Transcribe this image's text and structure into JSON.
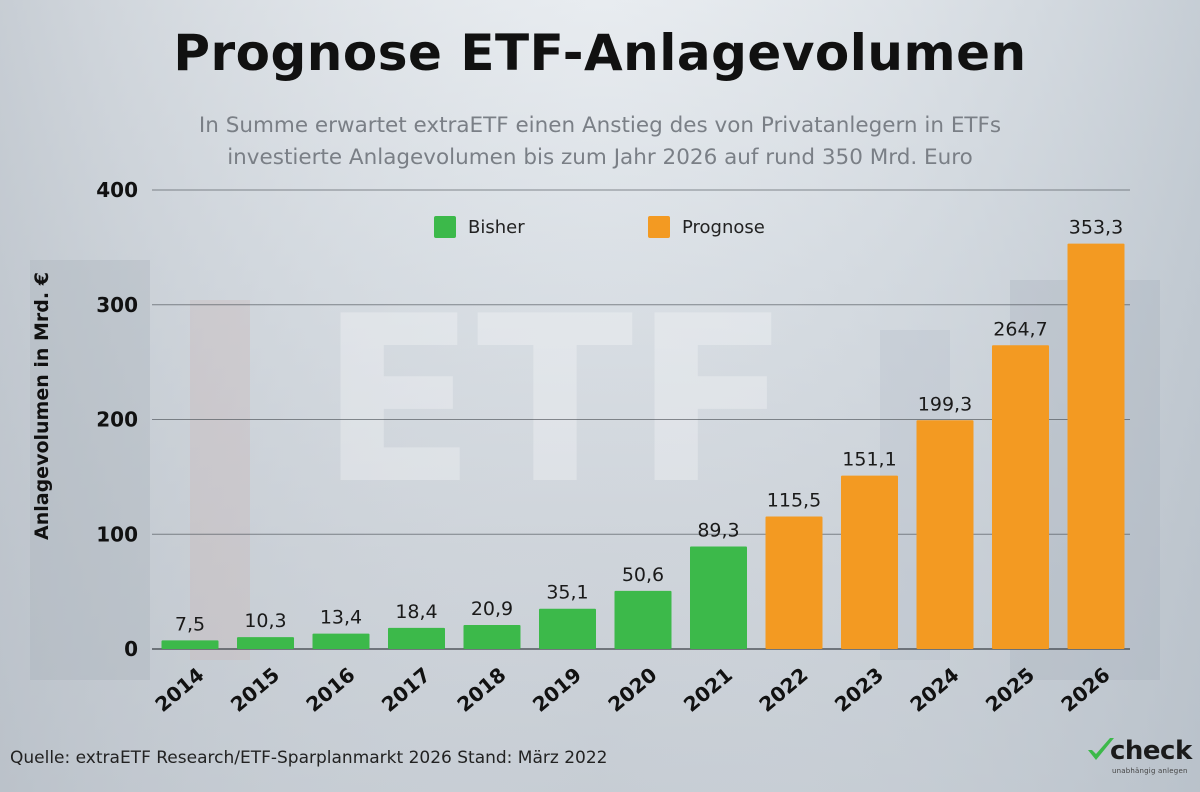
{
  "title": "Prognose ETF-Anlagevolumen",
  "subtitle_line1": "In Summe erwartet extraETF einen Anstieg des von Privatanlegern in ETFs",
  "subtitle_line2": "investierte Anlagevolumen bis zum Jahr 2026 auf rund 350 Mrd. Euro",
  "source": "Quelle: extraETF Research/ETF-Sparplanmarkt 2026 Stand: März 2022",
  "logo": {
    "wordmark": "check",
    "tagline": "unabhängig anlegen",
    "icon": "checkmark-icon"
  },
  "background": {
    "watermark": "ETF"
  },
  "colors": {
    "bisher": "#3cb94a",
    "prognose": "#f39a22",
    "grid": "#444a50"
  },
  "chart_data": {
    "type": "bar",
    "title": "Prognose ETF-Anlagevolumen",
    "xlabel": "",
    "ylabel": "Anlagevolumen in Mrd. €",
    "ylim": [
      0,
      400
    ],
    "yticks": [
      0,
      100,
      200,
      300,
      400
    ],
    "grid": true,
    "legend_position": "top-center",
    "categories": [
      "2014",
      "2015",
      "2016",
      "2017",
      "2018",
      "2019",
      "2020",
      "2021",
      "2022",
      "2023",
      "2024",
      "2025",
      "2026"
    ],
    "series": [
      {
        "name": "Bisher",
        "color": "#3cb94a",
        "values": [
          7.5,
          10.3,
          13.4,
          18.4,
          20.9,
          35.1,
          50.6,
          89.3,
          null,
          null,
          null,
          null,
          null
        ]
      },
      {
        "name": "Prognose",
        "color": "#f39a22",
        "values": [
          null,
          null,
          null,
          null,
          null,
          null,
          null,
          null,
          115.5,
          151.1,
          199.3,
          264.7,
          353.3
        ]
      }
    ],
    "data_labels": [
      "7,5",
      "10,3",
      "13,4",
      "18,4",
      "20,9",
      "35,1",
      "50,6",
      "89,3",
      "115,5",
      "151,1",
      "199,3",
      "264,7",
      "353,3"
    ]
  }
}
